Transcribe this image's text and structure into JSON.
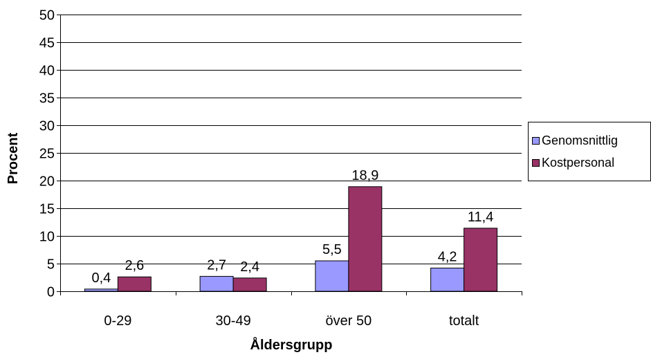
{
  "chart_data": {
    "type": "bar",
    "title": "",
    "xlabel": "Åldersgrupp",
    "ylabel": "Procent",
    "categories": [
      "0-29",
      "30-49",
      "över 50",
      "totalt"
    ],
    "series": [
      {
        "name": "Genomsnittlig",
        "color": "#9999FF",
        "values": [
          0.4,
          2.7,
          5.5,
          4.2
        ],
        "labels": [
          "0,4",
          "2,7",
          "5,5",
          "4,2"
        ]
      },
      {
        "name": "Kostpersonal",
        "color": "#993366",
        "values": [
          2.6,
          2.4,
          18.9,
          11.4
        ],
        "labels": [
          "2,6",
          "2,4",
          "18,9",
          "11,4"
        ]
      }
    ],
    "ylim": [
      0,
      50
    ],
    "yticks": [
      0,
      5,
      10,
      15,
      20,
      25,
      30,
      35,
      40,
      45,
      50
    ],
    "grid": true,
    "legend_position": "right"
  }
}
